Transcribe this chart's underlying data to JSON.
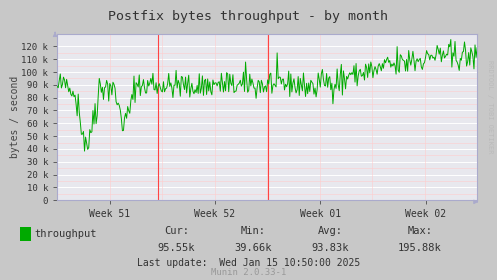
{
  "title": "Postfix bytes throughput - by month",
  "ylabel": "bytes / second",
  "yticks": [
    0,
    10000,
    20000,
    30000,
    40000,
    50000,
    60000,
    70000,
    80000,
    90000,
    100000,
    110000,
    120000
  ],
  "ytick_labels": [
    "0",
    "10 k",
    "20 k",
    "30 k",
    "40 k",
    "50 k",
    "60 k",
    "70 k",
    "80 k",
    "90 k",
    "100 k",
    "110 k",
    "120 k"
  ],
  "ylim": [
    0,
    130000
  ],
  "xtick_labels": [
    "Week 51",
    "Week 52",
    "Week 01",
    "Week 02"
  ],
  "fig_bg_color": "#c8c8c8",
  "plot_bg_color": "#e8e8ee",
  "grid_white_color": "#ffffff",
  "grid_red_color": "#ffcccc",
  "line_color": "#00aa00",
  "vline_color": "#ff4444",
  "title_color": "#333333",
  "tick_color": "#333333",
  "legend_square_color": "#00aa00",
  "stats_color": "#333333",
  "munin_color": "#999999",
  "rrdtool_color": "#bbbbbb",
  "cur": "95.55k",
  "min_val": "39.66k",
  "avg": "93.83k",
  "max_val": "195.88k",
  "last_update": "Wed Jan 15 10:50:00 2025",
  "legend_label": "throughput",
  "munin_text": "Munin 2.0.33-1",
  "rrdtool_text": "RRDTOOL / TOBI OETIKER",
  "seed": 42,
  "n_points": 400
}
